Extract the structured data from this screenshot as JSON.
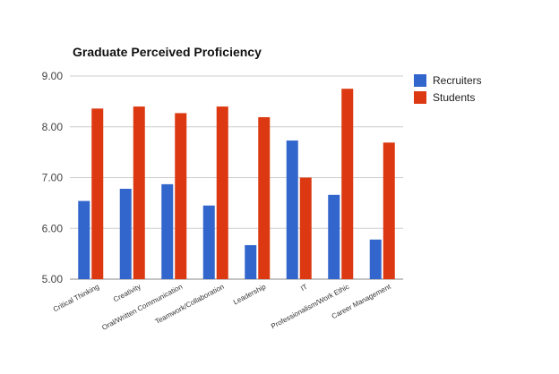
{
  "chart_data": {
    "type": "bar",
    "title": "Graduate Perceived Proficiency",
    "categories": [
      "Critical Thinking",
      "Creativity",
      "Oral/Written Communication",
      "Teamwork/Collaboration",
      "Leadership",
      "IT",
      "Professionalism/Work Ethic",
      "Career Management"
    ],
    "series": [
      {
        "name": "Recruiters",
        "color": "#3366cc",
        "values": [
          6.54,
          6.78,
          6.87,
          6.45,
          5.67,
          7.73,
          6.66,
          5.78
        ]
      },
      {
        "name": "Students",
        "color": "#dc3912",
        "values": [
          8.36,
          8.4,
          8.27,
          8.4,
          8.19,
          7.0,
          8.75,
          7.69
        ]
      }
    ],
    "ylim": [
      5.0,
      9.0
    ],
    "yticks": [
      "5.00",
      "6.00",
      "7.00",
      "8.00",
      "9.00"
    ],
    "grid": true,
    "legend_position": "right"
  }
}
